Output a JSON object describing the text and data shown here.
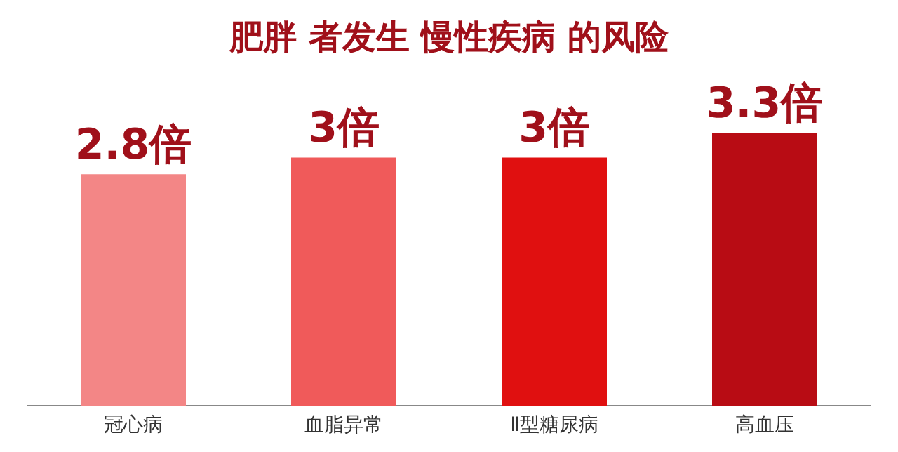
{
  "chart_data": {
    "type": "bar",
    "title": "肥胖 者发生 慢性疾病 的风险",
    "categories": [
      "冠心病",
      "血脂异常",
      "Ⅱ型糖尿病",
      "高血压"
    ],
    "values": [
      2.8,
      3,
      3,
      3.3
    ],
    "colors": [
      "#f38686",
      "#f05a5a",
      "#e01010",
      "#b80c14"
    ],
    "value_labels": [
      "2.8倍",
      "3倍",
      "3倍",
      "3.3倍"
    ],
    "tick_labels": "x",
    "grid": false,
    "legend": false
  }
}
